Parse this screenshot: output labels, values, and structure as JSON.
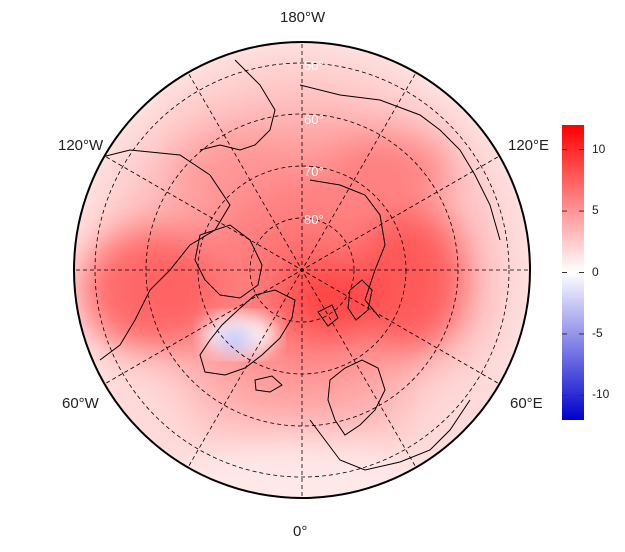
{
  "map": {
    "projection": "north-polar-stereographic",
    "background": "#ffffff",
    "land_outline_color": "#000000",
    "graticule_style": "dashed",
    "longitude_labels": [
      {
        "key": "lon-180w",
        "text": "180°W"
      },
      {
        "key": "lon-120w",
        "text": "120°W"
      },
      {
        "key": "lon-120e",
        "text": "120°E"
      },
      {
        "key": "lon-60w",
        "text": "60°W"
      },
      {
        "key": "lon-60e",
        "text": "60°E"
      },
      {
        "key": "lon-0",
        "text": "0°"
      }
    ],
    "latitude_labels": [
      {
        "key": "lat-50",
        "text": "50°"
      },
      {
        "key": "lat-60",
        "text": "60°"
      },
      {
        "key": "lat-70",
        "text": "70°"
      },
      {
        "key": "lat-80",
        "text": "80°"
      }
    ]
  },
  "colorbar": {
    "range": [
      -12,
      12
    ],
    "ticks": [
      {
        "value": 10,
        "text": "10"
      },
      {
        "value": 5,
        "text": "5"
      },
      {
        "value": 0,
        "text": "0"
      },
      {
        "value": -5,
        "text": "-5"
      },
      {
        "value": -10,
        "text": "-10"
      }
    ],
    "colors": {
      "low": "#0000cc",
      "mid": "#ffffff",
      "high": "#ff0000"
    }
  }
}
